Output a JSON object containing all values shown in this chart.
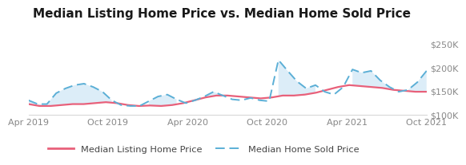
{
  "title": "Median Listing Home Price vs. Median Home Sold Price",
  "title_fontsize": 11,
  "x_tick_labels": [
    "Apr 2019",
    "Oct 2019",
    "Apr 2020",
    "Oct 2020",
    "Apr 2021",
    "Oct 2021"
  ],
  "ylim": [
    100000,
    260000
  ],
  "yticks": [
    100000,
    150000,
    200000,
    250000
  ],
  "listing_color": "#e8607a",
  "sold_color": "#5bafd6",
  "sold_fill_color": "#d6eaf7",
  "listing_data": [
    122000,
    118000,
    118000,
    120000,
    122000,
    122000,
    124000,
    126000,
    124000,
    120000,
    118000,
    119000,
    118000,
    120000,
    124000,
    130000,
    136000,
    140000,
    140000,
    138000,
    136000,
    134000,
    136000,
    140000,
    140000,
    142000,
    146000,
    152000,
    158000,
    162000,
    160000,
    158000,
    156000,
    152000,
    150000,
    148000,
    148000
  ],
  "sold_data": [
    130000,
    122000,
    122000,
    145000,
    155000,
    162000,
    165000,
    158000,
    148000,
    130000,
    120000,
    118000,
    118000,
    128000,
    138000,
    142000,
    132000,
    124000,
    130000,
    138000,
    148000,
    140000,
    132000,
    130000,
    135000,
    130000,
    128000,
    215000,
    192000,
    170000,
    155000,
    162000,
    148000,
    142000,
    158000,
    195000,
    188000,
    192000,
    172000,
    158000,
    148000,
    152000,
    168000,
    192000
  ],
  "legend_listing_label": "Median Listing Home Price",
  "legend_sold_label": "Median Home Sold Price",
  "bg_color": "#ffffff",
  "axis_label_color": "#888888",
  "tick_label_fontsize": 8,
  "grid_color": "#d8d8d8"
}
